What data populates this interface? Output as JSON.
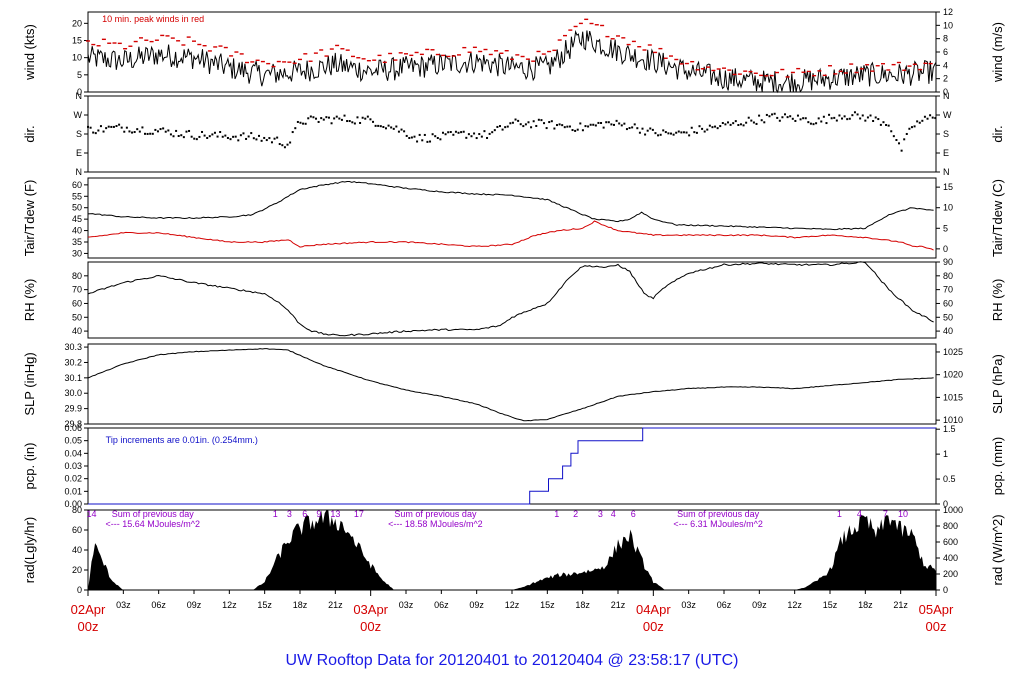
{
  "title": "UW Rooftop Data for 20120401  to  20120404 @ 23:58:17  (UTC)",
  "colors": {
    "title": "#1a1ae6",
    "red": "#d40000",
    "blue": "#1010c8",
    "purple": "#9400c8",
    "black": "#000000"
  },
  "x_axis": {
    "day_labels": [
      {
        "h": 0,
        "l1": "02Apr",
        "l2": "00z"
      },
      {
        "h": 24,
        "l1": "03Apr",
        "l2": "00z"
      },
      {
        "h": 48,
        "l1": "04Apr",
        "l2": "00z"
      },
      {
        "h": 72,
        "l1": "05Apr",
        "l2": "00z"
      }
    ],
    "hour_ticks": [
      {
        "h": 3,
        "t": "03z"
      },
      {
        "h": 6,
        "t": "06z"
      },
      {
        "h": 9,
        "t": "09z"
      },
      {
        "h": 12,
        "t": "12z"
      },
      {
        "h": 15,
        "t": "15z"
      },
      {
        "h": 18,
        "t": "18z"
      },
      {
        "h": 21,
        "t": "21z"
      },
      {
        "h": 27,
        "t": "03z"
      },
      {
        "h": 30,
        "t": "06z"
      },
      {
        "h": 33,
        "t": "09z"
      },
      {
        "h": 36,
        "t": "12z"
      },
      {
        "h": 39,
        "t": "15z"
      },
      {
        "h": 42,
        "t": "18z"
      },
      {
        "h": 45,
        "t": "21z"
      },
      {
        "h": 51,
        "t": "03z"
      },
      {
        "h": 54,
        "t": "06z"
      },
      {
        "h": 57,
        "t": "09z"
      },
      {
        "h": 60,
        "t": "12z"
      },
      {
        "h": 63,
        "t": "15z"
      },
      {
        "h": 66,
        "t": "18z"
      },
      {
        "h": 69,
        "t": "21z"
      }
    ],
    "range_hours": [
      0,
      72
    ]
  },
  "chart_data": [
    {
      "type": "line",
      "key": "wind",
      "left_label": "wind (kts)",
      "right_label": "wind (m/s)",
      "left_ticks": [
        "0",
        "5",
        "10",
        "15",
        "20"
      ],
      "left_range": [
        0,
        23.3
      ],
      "right_ticks": [
        "0",
        "2",
        "4",
        "6",
        "8",
        "10",
        "12"
      ],
      "annotation": "10 min. peak winds in red",
      "series": [
        {
          "name": "wind",
          "color": "#000000",
          "x": [
            0,
            3,
            6,
            9,
            12,
            15,
            18,
            21,
            24,
            27,
            30,
            33,
            36,
            39,
            42,
            45,
            48,
            51,
            54,
            57,
            60,
            63,
            66,
            69,
            72
          ],
          "y": [
            10,
            9,
            11,
            10,
            7,
            5,
            6,
            8,
            6,
            7,
            8,
            9,
            7,
            7,
            16,
            12,
            9,
            6,
            4,
            3,
            3,
            4,
            5,
            5,
            6
          ]
        },
        {
          "name": "peak",
          "color": "#d40000",
          "x": [
            0,
            3,
            6,
            9,
            12,
            15,
            18,
            21,
            24,
            27,
            30,
            33,
            36,
            39,
            42,
            45,
            48,
            51,
            54,
            57,
            60,
            63,
            66,
            69,
            72
          ],
          "y": [
            14,
            13,
            15,
            14,
            11,
            8,
            9,
            12,
            9,
            10,
            11,
            12,
            10,
            10,
            20,
            16,
            12,
            8,
            6,
            5,
            5,
            6,
            7,
            7,
            8
          ]
        }
      ]
    },
    {
      "type": "scatter",
      "key": "dir",
      "left_label": "dir.",
      "right_label": "dir.",
      "left_ticks": [
        "N",
        "E",
        "S",
        "W",
        "N"
      ],
      "left_range": [
        0,
        360
      ],
      "right_ticks": [
        "N",
        "E",
        "S",
        "W",
        "N"
      ],
      "series": [
        {
          "name": "dir",
          "color": "#000000",
          "x": [
            0,
            3,
            6,
            9,
            12,
            14,
            16,
            17,
            18,
            20,
            22,
            24,
            26,
            28,
            30,
            32,
            34,
            36,
            38,
            40,
            42,
            44,
            46,
            48,
            50,
            52,
            54,
            56,
            58,
            60,
            62,
            64,
            66,
            68,
            69,
            70,
            72
          ],
          "y": [
            200,
            210,
            195,
            175,
            170,
            165,
            150,
            130,
            240,
            250,
            250,
            245,
            210,
            160,
            165,
            180,
            175,
            230,
            230,
            220,
            210,
            230,
            220,
            185,
            180,
            200,
            220,
            240,
            260,
            255,
            240,
            270,
            260,
            230,
            100,
            220,
            270
          ]
        }
      ]
    },
    {
      "type": "line",
      "key": "temp",
      "left_label": "Tair/Tdew (F)",
      "right_label": "Tair/Tdew (C)",
      "left_ticks": [
        "30",
        "35",
        "40",
        "45",
        "50",
        "55",
        "60"
      ],
      "left_range": [
        28,
        63
      ],
      "right_ticks": [
        "0",
        "5",
        "10",
        "15"
      ],
      "series": [
        {
          "name": "Tair",
          "color": "#000000",
          "x": [
            0,
            3,
            6,
            9,
            12,
            14,
            16,
            18,
            20,
            22,
            24,
            27,
            30,
            33,
            36,
            39,
            42,
            43,
            45,
            46,
            47,
            48,
            50,
            54,
            57,
            60,
            63,
            66,
            68,
            70,
            72
          ],
          "y": [
            47.5,
            46,
            45.5,
            45.5,
            46,
            47,
            52,
            58,
            60,
            61.5,
            60.5,
            58.5,
            57,
            56,
            55.5,
            53.5,
            47,
            45,
            44,
            45,
            48,
            45,
            42.5,
            42,
            41.5,
            41,
            40.5,
            41,
            47,
            50,
            48.5
          ]
        },
        {
          "name": "Tdew",
          "color": "#d40000",
          "x": [
            0,
            3,
            6,
            9,
            12,
            15,
            17,
            18,
            20,
            24,
            27,
            30,
            33,
            36,
            38,
            40,
            42,
            43,
            45,
            48,
            51,
            54,
            57,
            60,
            63,
            66,
            69,
            70,
            71,
            72
          ],
          "y": [
            37,
            39,
            39,
            37,
            35,
            35,
            36,
            33,
            34,
            35,
            35,
            34,
            33,
            34,
            38,
            40,
            41,
            44,
            40,
            38,
            38,
            38,
            38,
            37,
            38,
            37,
            35,
            33,
            33,
            31
          ]
        }
      ]
    },
    {
      "type": "line",
      "key": "rh",
      "left_label": "RH (%)",
      "right_label": "RH (%)",
      "left_ticks": [
        "40",
        "50",
        "60",
        "70",
        "80"
      ],
      "left_range": [
        35,
        90
      ],
      "right_ticks": [
        "40",
        "50",
        "60",
        "70",
        "80",
        "90"
      ],
      "series": [
        {
          "name": "RH",
          "color": "#000000",
          "x": [
            0,
            3,
            6,
            9,
            12,
            15,
            16,
            17,
            18,
            19,
            20,
            21,
            22,
            24,
            27,
            30,
            33,
            35,
            36,
            38,
            39,
            41,
            42,
            43,
            44,
            45,
            46,
            47,
            47.5,
            48,
            49,
            51,
            54,
            57,
            60,
            63,
            66,
            68,
            70,
            72
          ],
          "y": [
            67,
            75,
            80,
            75,
            71,
            67,
            62,
            55,
            45,
            40,
            38,
            37,
            37,
            38,
            40,
            41,
            41,
            44,
            50,
            57,
            60,
            80,
            87,
            87,
            86,
            88,
            83,
            70,
            65,
            64,
            72,
            82,
            88,
            89,
            88,
            88,
            90,
            70,
            55,
            46
          ]
        }
      ]
    },
    {
      "type": "line",
      "key": "slp",
      "left_label": "SLP (inHg)",
      "right_label": "SLP (hPa)",
      "left_ticks": [
        "29.8",
        "29.9",
        "30.0",
        "30.1",
        "30.2",
        "30.3"
      ],
      "left_range": [
        29.8,
        30.32
      ],
      "right_ticks": [
        "1010",
        "1015",
        "1020",
        "1025"
      ],
      "series": [
        {
          "name": "SLP",
          "color": "#000000",
          "x": [
            0,
            3,
            6,
            9,
            12,
            15,
            17,
            20,
            24,
            27,
            30,
            33,
            35,
            37,
            39,
            42,
            45,
            48,
            51,
            54,
            57,
            60,
            63,
            66,
            69,
            72
          ],
          "y": [
            30.1,
            30.19,
            30.25,
            30.27,
            30.28,
            30.29,
            30.28,
            30.18,
            30.08,
            30.02,
            29.98,
            29.93,
            29.87,
            29.82,
            29.83,
            29.9,
            29.98,
            30.01,
            30.03,
            30.04,
            30.04,
            30.03,
            30.05,
            30.07,
            30.09,
            30.1
          ]
        }
      ]
    },
    {
      "type": "line",
      "key": "pcp",
      "left_label": "pcp. (in)",
      "right_label": "pcp. (mm)",
      "left_ticks": [
        "0.00",
        "0.01",
        "0.02",
        "0.03",
        "0.04",
        "0.05",
        "0.06"
      ],
      "left_range": [
        0,
        0.06
      ],
      "right_ticks": [
        "0",
        "0.5",
        "1",
        "1.5"
      ],
      "annotation": "Tip increments are 0.01in. (0.254mm.)",
      "series": [
        {
          "name": "pcp",
          "color": "#1010c8",
          "x": [
            0,
            37.5,
            37.5,
            39.1,
            39.1,
            40.3,
            40.3,
            41.0,
            41.0,
            41.6,
            41.6,
            47.1,
            47.1,
            72
          ],
          "y": [
            0,
            0,
            0.01,
            0.01,
            0.02,
            0.02,
            0.03,
            0.03,
            0.04,
            0.04,
            0.05,
            0.05,
            0.06,
            0.06
          ]
        }
      ]
    },
    {
      "type": "area",
      "key": "rad",
      "left_label": "rad(Lgly/hr)",
      "right_label": "rad (W/m^2)",
      "left_ticks": [
        "0",
        "20",
        "40",
        "60",
        "80"
      ],
      "left_range": [
        0,
        80
      ],
      "right_ticks": [
        "0",
        "200",
        "400",
        "600",
        "800",
        "1000"
      ],
      "daily_sums": [
        "Sum of previous day",
        "<--- 15.64 MJoules/m^2",
        "Sum of previous day",
        "<--- 18.58 MJoules/m^2",
        "Sum of previous day",
        "<--- 6.31 MJoules/m^2"
      ],
      "hour_marks": [
        {
          "h": 0.3,
          "t": "14"
        },
        {
          "h": 15.9,
          "t": "1"
        },
        {
          "h": 17.1,
          "t": "3"
        },
        {
          "h": 18.4,
          "t": "6"
        },
        {
          "h": 19.6,
          "t": "9"
        },
        {
          "h": 21,
          "t": "13"
        },
        {
          "h": 23,
          "t": "17"
        },
        {
          "h": 39.8,
          "t": "1"
        },
        {
          "h": 41.4,
          "t": "2"
        },
        {
          "h": 43.5,
          "t": "3"
        },
        {
          "h": 44.6,
          "t": "4"
        },
        {
          "h": 46.3,
          "t": "6"
        },
        {
          "h": 63.8,
          "t": "1"
        },
        {
          "h": 65.5,
          "t": "4"
        },
        {
          "h": 67.7,
          "t": "7"
        },
        {
          "h": 69.2,
          "t": "10"
        }
      ],
      "series": [
        {
          "name": "rad",
          "color": "#000000",
          "x": [
            0,
            0.5,
            1,
            2,
            3,
            14,
            15,
            16,
            17,
            18,
            19,
            20,
            21,
            22,
            23,
            24,
            25,
            26,
            36,
            37,
            38,
            39,
            40,
            41,
            42,
            43,
            44,
            45,
            46,
            47,
            48,
            49,
            60,
            61,
            62,
            63,
            64,
            65,
            66,
            67,
            68,
            69,
            70,
            71,
            72
          ],
          "y": [
            0,
            45,
            35,
            10,
            0,
            0,
            8,
            30,
            50,
            62,
            68,
            72,
            70,
            60,
            42,
            25,
            10,
            0,
            0,
            3,
            8,
            12,
            15,
            16,
            18,
            20,
            25,
            45,
            55,
            30,
            8,
            0,
            0,
            3,
            10,
            20,
            50,
            62,
            70,
            55,
            75,
            60,
            55,
            25,
            20
          ]
        }
      ]
    }
  ]
}
